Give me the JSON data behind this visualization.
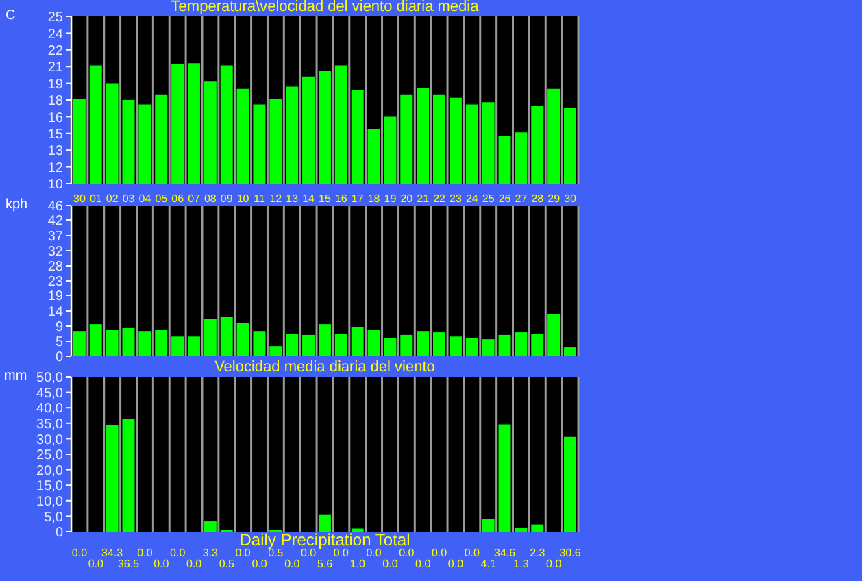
{
  "chart_data": [
    {
      "type": "bar",
      "title": "Temperatura\\velocidad del viento diaria media",
      "ylabel": "C",
      "categories": [
        "30",
        "01",
        "02",
        "03",
        "04",
        "05",
        "06",
        "07",
        "08",
        "09",
        "10",
        "11",
        "12",
        "13",
        "14",
        "15",
        "16",
        "17",
        "18",
        "19",
        "20",
        "21",
        "22",
        "23",
        "24",
        "25",
        "26",
        "27",
        "28",
        "29",
        "30"
      ],
      "color": "#00ff00",
      "values": [
        17.6,
        20.6,
        19.0,
        17.5,
        17.1,
        18.0,
        20.7,
        20.8,
        19.2,
        20.6,
        18.5,
        17.1,
        17.6,
        18.7,
        19.6,
        20.1,
        20.6,
        18.4,
        14.9,
        16.0,
        18.0,
        18.6,
        18.0,
        17.7,
        17.1,
        17.3,
        14.3,
        14.6,
        17.0,
        18.5,
        16.8
      ],
      "ylim": [
        10,
        25
      ],
      "yticks": [
        10,
        {
          "value": 11.5,
          "label": "12"
        },
        13,
        {
          "value": 14.5,
          "label": "15"
        },
        16,
        {
          "value": 17.5,
          "label": "18"
        },
        19,
        {
          "value": 20.5,
          "label": "21"
        },
        22,
        {
          "value": 23.5,
          "label": "24"
        },
        25
      ],
      "grid": "x"
    },
    {
      "type": "bar",
      "ylabel": "kph",
      "categories": [
        "30",
        "01",
        "02",
        "03",
        "04",
        "05",
        "06",
        "07",
        "08",
        "09",
        "10",
        "11",
        "12",
        "13",
        "14",
        "15",
        "16",
        "17",
        "18",
        "19",
        "20",
        "21",
        "22",
        "23",
        "24",
        "25",
        "26",
        "27",
        "28",
        "29",
        "30"
      ],
      "color": "#00ff00",
      "values": [
        7.7,
        9.8,
        8.1,
        8.6,
        7.7,
        8.1,
        6.0,
        6.0,
        11.5,
        11.9,
        10.2,
        7.7,
        3.1,
        6.9,
        6.5,
        9.8,
        6.9,
        9.0,
        8.1,
        5.6,
        6.5,
        7.7,
        7.3,
        6.0,
        5.6,
        5.2,
        6.5,
        7.3,
        6.9,
        12.8,
        2.7
      ],
      "ylim": [
        0,
        46
      ],
      "yticks": [
        0,
        {
          "value": 4.6,
          "label": "5"
        },
        {
          "value": 9.2,
          "label": "9"
        },
        {
          "value": 13.8,
          "label": "14"
        },
        {
          "value": 18.6,
          "label": "19"
        },
        23,
        {
          "value": 27.6,
          "label": "28"
        },
        {
          "value": 32.2,
          "label": "32"
        },
        {
          "value": 36.8,
          "label": "37"
        },
        {
          "value": 41.6,
          "label": "42"
        },
        46
      ],
      "grid": "x",
      "tick_labels": "y"
    },
    {
      "type": "bar",
      "title": "Velocidad media diaria del viento",
      "xlabel": "Daily Precipitation Total",
      "ylabel": "mm",
      "categories": [
        "30",
        "01",
        "02",
        "03",
        "04",
        "05",
        "06",
        "07",
        "08",
        "09",
        "10",
        "11",
        "12",
        "13",
        "14",
        "15",
        "16",
        "17",
        "18",
        "19",
        "20",
        "21",
        "22",
        "23",
        "24",
        "25",
        "26",
        "27",
        "28",
        "29",
        "30"
      ],
      "color": "#00ff00",
      "values": [
        0.0,
        0.0,
        34.3,
        36.5,
        0.0,
        0.0,
        0.0,
        0.0,
        3.3,
        0.5,
        0.0,
        0.0,
        0.5,
        0.0,
        0.0,
        5.6,
        0.0,
        1.0,
        0.0,
        0.0,
        0.0,
        0.0,
        0.0,
        0.0,
        0.0,
        4.1,
        34.6,
        1.3,
        2.3,
        0.0,
        30.6
      ],
      "value_labels": [
        "0.0",
        "0.0",
        "34.3",
        "36.5",
        "0.0",
        "0.0",
        "0.0",
        "0.0",
        "3.3",
        "0.5",
        "0.0",
        "0.0",
        "0.5",
        "0.0",
        "0.0",
        "5.6",
        "0.0",
        "1.0",
        "0.0",
        "0.0",
        "0.0",
        "0.0",
        "0.0",
        "0.0",
        "0.0",
        "4.1",
        "34.6",
        "1.3",
        "2.3",
        "0.0",
        "30.6"
      ],
      "ylim": [
        0,
        50
      ],
      "yticks": [
        0,
        {
          "value": 5,
          "label": "5,0"
        },
        {
          "value": 10,
          "label": "10,0"
        },
        {
          "value": 15,
          "label": "15,0"
        },
        {
          "value": 20,
          "label": "20,0"
        },
        {
          "value": 25,
          "label": "25,0"
        },
        {
          "value": 30,
          "label": "30,0"
        },
        {
          "value": 35,
          "label": "35,0"
        },
        {
          "value": 40,
          "label": "40,0"
        },
        {
          "value": 45,
          "label": "45,0"
        },
        {
          "value": 50,
          "label": "50,0"
        }
      ],
      "grid": "x",
      "tick_labels": "y"
    }
  ]
}
